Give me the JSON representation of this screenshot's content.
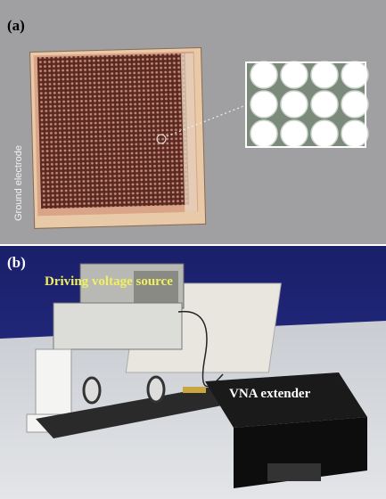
{
  "panel_a": {
    "label": "(a)",
    "annotation": "Ground electrode"
  },
  "panel_b": {
    "label": "(b)",
    "annotations": [
      "Driving voltage source",
      "VNA extender"
    ]
  }
}
